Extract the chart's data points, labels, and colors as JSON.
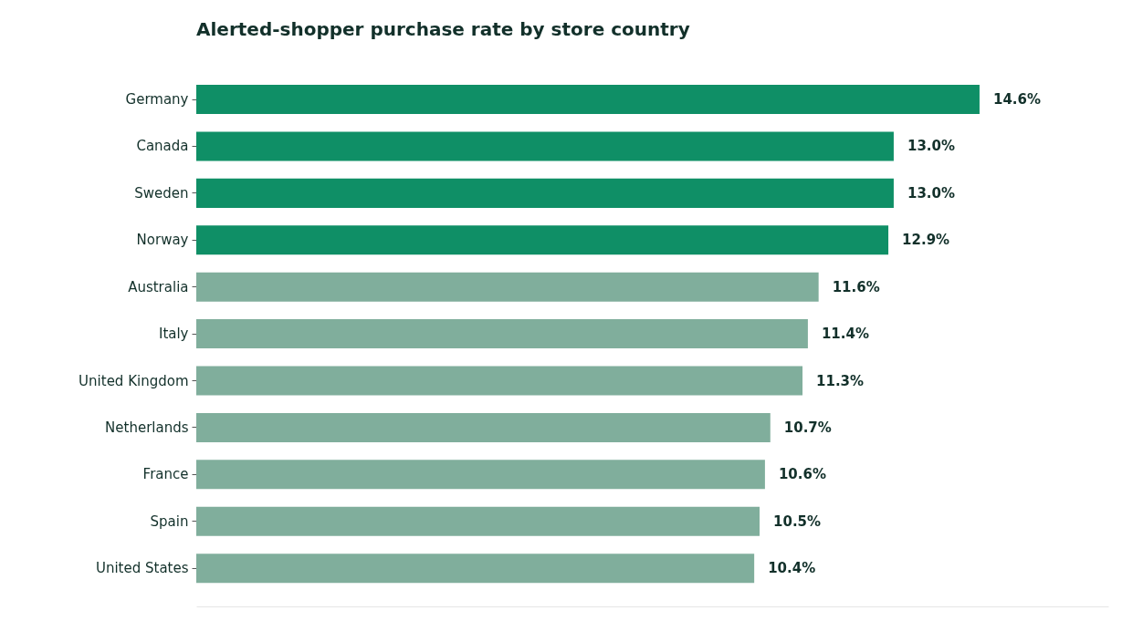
{
  "chart_data": {
    "type": "bar",
    "orientation": "horizontal",
    "title": "Alerted-shopper purchase rate by store country",
    "categories": [
      "Germany",
      "Canada",
      "Sweden",
      "Norway",
      "Australia",
      "Italy",
      "United Kingdom",
      "Netherlands",
      "France",
      "Spain",
      "United States"
    ],
    "values": [
      14.6,
      13.0,
      13.0,
      12.9,
      11.6,
      11.4,
      11.3,
      10.7,
      10.6,
      10.5,
      10.4
    ],
    "value_labels": [
      "14.6%",
      "13.0%",
      "13.0%",
      "12.9%",
      "11.6%",
      "11.4%",
      "11.3%",
      "10.7%",
      "10.6%",
      "10.5%",
      "10.4%"
    ],
    "colors": [
      "#0f8f66",
      "#0f8f66",
      "#0f8f66",
      "#0f8f66",
      "#80ae9c",
      "#80ae9c",
      "#80ae9c",
      "#80ae9c",
      "#80ae9c",
      "#80ae9c",
      "#80ae9c"
    ],
    "xlim": [
      0,
      17
    ],
    "tick_labels": "y"
  }
}
